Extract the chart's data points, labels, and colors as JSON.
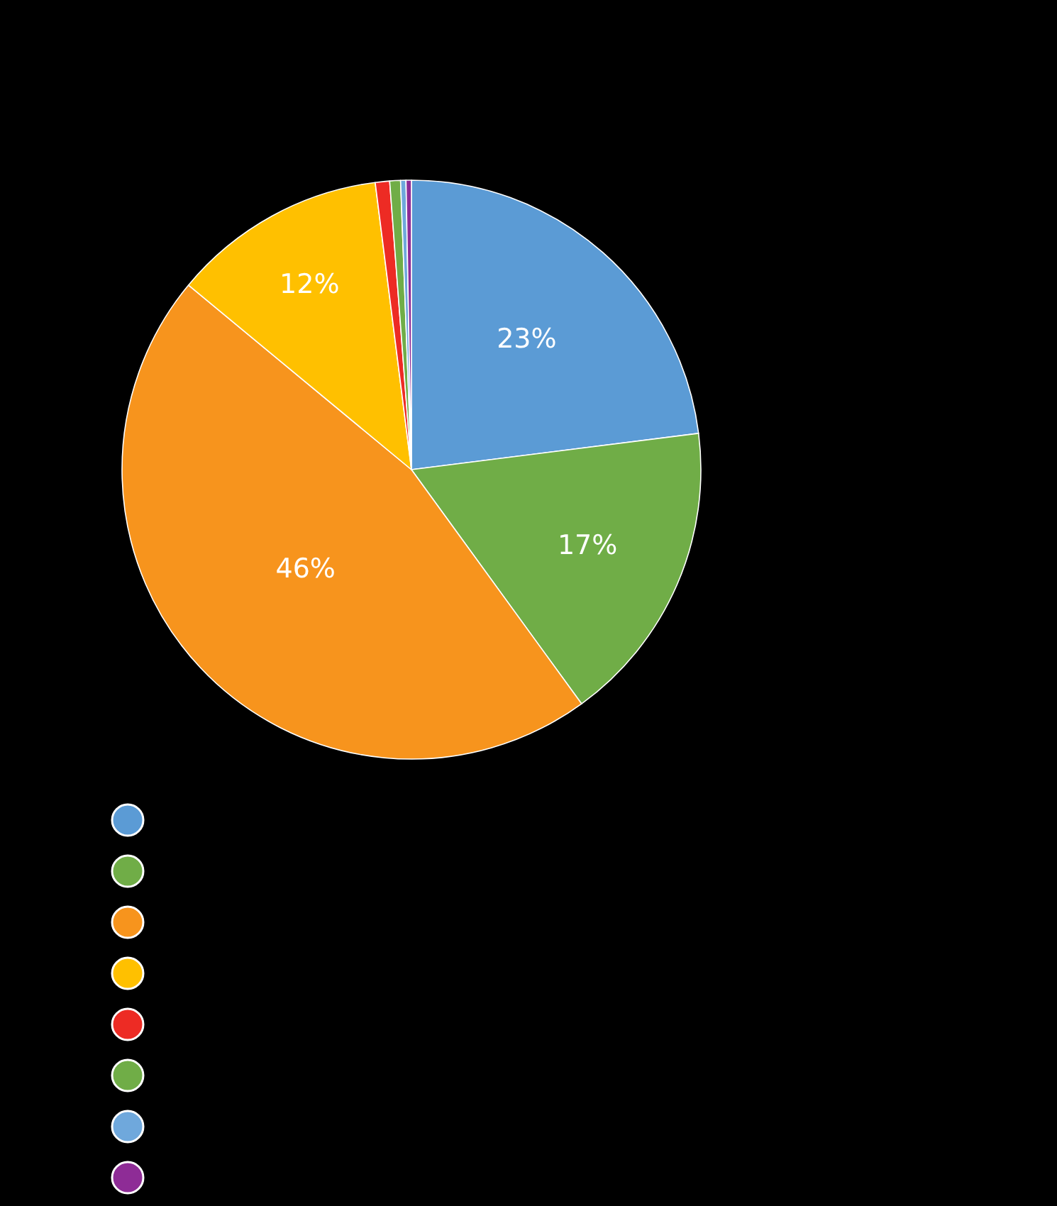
{
  "chart_data": {
    "type": "pie",
    "categories": [
      null,
      null,
      null,
      null,
      null,
      null,
      null,
      null
    ],
    "values": [
      23,
      17,
      46,
      12,
      0.8,
      0.6,
      0.3,
      0.3
    ],
    "value_labels": [
      "23%",
      "17%",
      "46%",
      "12%",
      null,
      null,
      null,
      null
    ],
    "colors": [
      "#5b9bd5",
      "#70ad47",
      "#f7941d",
      "#ffc000",
      "#ed2b24",
      "#70ad47",
      "#6fa8dc",
      "#8e2c96"
    ]
  }
}
